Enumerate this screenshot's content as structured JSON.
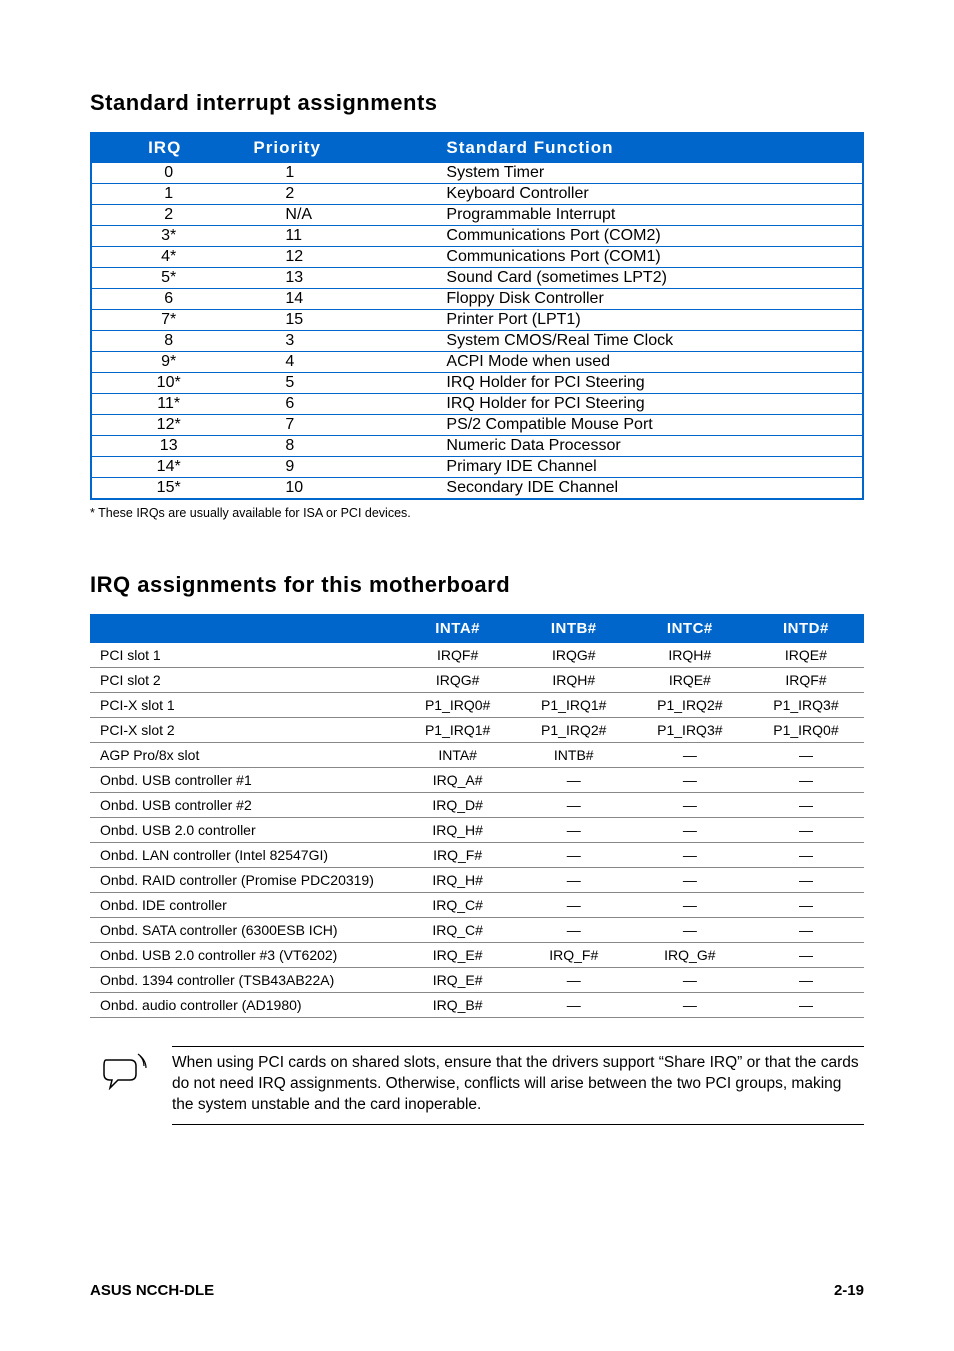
{
  "headings": {
    "table1": "Standard interrupt assignments",
    "table2": "IRQ assignments for this motherboard"
  },
  "irq_table": {
    "columns": {
      "irq": "IRQ",
      "priority": "Priority",
      "func": "Standard Function"
    },
    "header_bg": "#0066cc",
    "header_fg": "#ffffff",
    "border_color": "#0066cc",
    "rows": [
      {
        "irq": "0",
        "priority": "1",
        "func": "System Timer"
      },
      {
        "irq": "1",
        "priority": "2",
        "func": "Keyboard Controller"
      },
      {
        "irq": "2",
        "priority": "N/A",
        "func": "Programmable Interrupt"
      },
      {
        "irq": "3*",
        "priority": "11",
        "func": "Communications Port (COM2)"
      },
      {
        "irq": "4*",
        "priority": "12",
        "func": "Communications Port (COM1)"
      },
      {
        "irq": "5*",
        "priority": "13",
        "func": "Sound Card (sometimes LPT2)"
      },
      {
        "irq": "6",
        "priority": "14",
        "func": "Floppy Disk Controller"
      },
      {
        "irq": "7*",
        "priority": "15",
        "func": "Printer Port (LPT1)"
      },
      {
        "irq": "8",
        "priority": "3",
        "func": "System CMOS/Real Time Clock"
      },
      {
        "irq": "9*",
        "priority": "4",
        "func": "ACPI Mode when used"
      },
      {
        "irq": "10*",
        "priority": "5",
        "func": "IRQ Holder for PCI Steering"
      },
      {
        "irq": "11*",
        "priority": "6",
        "func": "IRQ Holder for PCI Steering"
      },
      {
        "irq": "12*",
        "priority": "7",
        "func": "PS/2 Compatible Mouse Port"
      },
      {
        "irq": "13",
        "priority": "8",
        "func": "Numeric Data Processor"
      },
      {
        "irq": "14*",
        "priority": "9",
        "func": "Primary IDE Channel"
      },
      {
        "irq": "15*",
        "priority": "10",
        "func": "Secondary IDE Channel"
      }
    ],
    "footnote": "* These IRQs are usually available for ISA or PCI devices."
  },
  "mb_table": {
    "columns": {
      "label": "",
      "inta": "INTA#",
      "intb": "INTB#",
      "intc": "INTC#",
      "intd": "INTD#"
    },
    "header_bg": "#0066cc",
    "header_fg": "#ffffff",
    "row_border": "#888888",
    "rows": [
      {
        "label": "PCI slot 1",
        "a": "IRQF#",
        "b": "IRQG#",
        "c": "IRQH#",
        "d": "IRQE#"
      },
      {
        "label": "PCI slot 2",
        "a": "IRQG#",
        "b": "IRQH#",
        "c": "IRQE#",
        "d": "IRQF#"
      },
      {
        "label": "PCI-X slot 1",
        "a": "P1_IRQ0#",
        "b": "P1_IRQ1#",
        "c": "P1_IRQ2#",
        "d": "P1_IRQ3#"
      },
      {
        "label": "PCI-X slot 2",
        "a": "P1_IRQ1#",
        "b": "P1_IRQ2#",
        "c": "P1_IRQ3#",
        "d": "P1_IRQ0#"
      },
      {
        "label": "AGP Pro/8x slot",
        "a": "INTA#",
        "b": "INTB#",
        "c": "—",
        "d": "—"
      },
      {
        "label": "Onbd. USB controller #1",
        "a": "IRQ_A#",
        "b": "—",
        "c": "—",
        "d": "—"
      },
      {
        "label": "Onbd. USB controller #2",
        "a": "IRQ_D#",
        "b": "—",
        "c": "—",
        "d": "—"
      },
      {
        "label": "Onbd. USB 2.0 controller",
        "a": "IRQ_H#",
        "b": "—",
        "c": "—",
        "d": "—"
      },
      {
        "label": "Onbd. LAN controller (Intel 82547GI)",
        "a": "IRQ_F#",
        "b": "—",
        "c": "—",
        "d": "—"
      },
      {
        "label": "Onbd. RAID controller (Promise PDC20319)",
        "a": "IRQ_H#",
        "b": "—",
        "c": "—",
        "d": "—"
      },
      {
        "label": "Onbd. IDE controller",
        "a": "IRQ_C#",
        "b": "—",
        "c": "—",
        "d": "—"
      },
      {
        "label": "Onbd. SATA controller (6300ESB ICH)",
        "a": "IRQ_C#",
        "b": "—",
        "c": "—",
        "d": "—"
      },
      {
        "label": "Onbd. USB 2.0 controller #3 (VT6202)",
        "a": "IRQ_E#",
        "b": "IRQ_F#",
        "c": "IRQ_G#",
        "d": "—"
      },
      {
        "label": "Onbd. 1394 controller (TSB43AB22A)",
        "a": "IRQ_E#",
        "b": "—",
        "c": "—",
        "d": "—"
      },
      {
        "label": "Onbd. audio controller (AD1980)",
        "a": "IRQ_B#",
        "b": "—",
        "c": "—",
        "d": "—"
      }
    ]
  },
  "note": {
    "text": "When using PCI cards on shared slots, ensure that the drivers support “Share IRQ” or that the cards do not need IRQ assignments. Otherwise, conflicts will arise between the two PCI groups, making the system unstable and the card inoperable."
  },
  "footer": {
    "left": "ASUS NCCH-DLE",
    "right": "2-19"
  }
}
